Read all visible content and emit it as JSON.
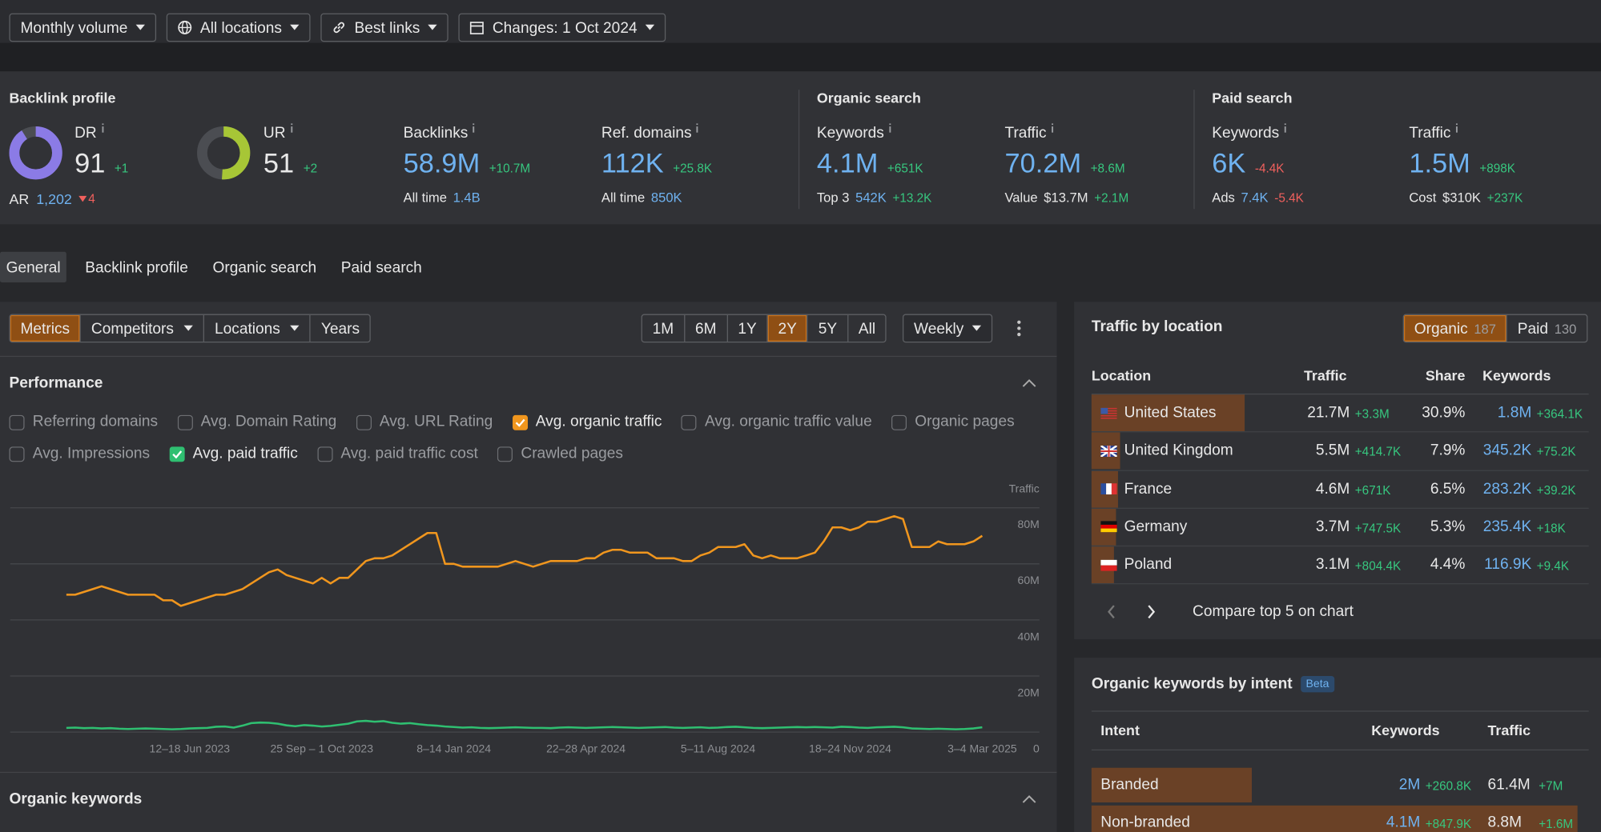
{
  "filters": [
    "Monthly volume",
    "All locations",
    "Best links",
    "Changes: 1 Oct 2024"
  ],
  "backlink_profile": {
    "title": "Backlink profile",
    "dr": {
      "label": "DR",
      "value": 91,
      "change": "+1"
    },
    "ur": {
      "label": "UR",
      "value": 51,
      "change": "+2"
    },
    "ar": {
      "label": "AR",
      "value": "1,202",
      "change": "4"
    },
    "backlinks": {
      "label": "Backlinks",
      "value": "58.9M",
      "change": "+10.7M",
      "sub_label": "All time",
      "sub_value": "1.4B"
    },
    "ref_domains": {
      "label": "Ref. domains",
      "value": "112K",
      "change": "+25.8K",
      "sub_label": "All time",
      "sub_value": "850K"
    }
  },
  "organic_search": {
    "title": "Organic search",
    "keywords": {
      "label": "Keywords",
      "value": "4.1M",
      "change": "+651K",
      "sub_label": "Top 3",
      "sub_value": "542K",
      "sub_change": "+13.2K"
    },
    "traffic": {
      "label": "Traffic",
      "value": "70.2M",
      "change": "+8.6M",
      "sub_label": "Value",
      "sub_value": "$13.7M",
      "sub_change": "+2.1M"
    }
  },
  "paid_search": {
    "title": "Paid search",
    "keywords": {
      "label": "Keywords",
      "value": "6K",
      "change": "-4.4K",
      "sub_label": "Ads",
      "sub_value": "7.4K",
      "sub_change": "-5.4K"
    },
    "traffic": {
      "label": "Traffic",
      "value": "1.5M",
      "change": "+898K",
      "sub_label": "Cost",
      "sub_value": "$310K",
      "sub_change": "+237K"
    }
  },
  "tabs": [
    "General",
    "Backlink profile",
    "Organic search",
    "Paid search"
  ],
  "active_tab": 0,
  "toolbar": {
    "views": [
      "Metrics",
      "Competitors",
      "Locations",
      "Years"
    ],
    "active_view": 0,
    "periods": [
      "1M",
      "6M",
      "1Y",
      "2Y",
      "5Y",
      "All"
    ],
    "active_period": 3,
    "interval": "Weekly"
  },
  "performance": {
    "title": "Performance",
    "metrics": [
      {
        "label": "Referring domains",
        "checked": false
      },
      {
        "label": "Avg. Domain Rating",
        "checked": false
      },
      {
        "label": "Avg. URL Rating",
        "checked": false
      },
      {
        "label": "Avg. organic traffic",
        "checked": true
      },
      {
        "label": "Avg. organic traffic value",
        "checked": false
      },
      {
        "label": "Organic pages",
        "checked": false
      },
      {
        "label": "Avg. Impressions",
        "checked": false
      },
      {
        "label": "Avg. paid traffic",
        "checked": true
      },
      {
        "label": "Avg. paid traffic cost",
        "checked": false
      },
      {
        "label": "Crawled pages",
        "checked": false
      }
    ]
  },
  "chart_data": {
    "type": "line",
    "y_label": "Traffic",
    "categories": [
      null,
      null,
      null,
      null,
      null,
      null,
      null,
      null,
      null,
      null,
      null,
      null,
      null,
      null,
      "12–18 Jun 2023",
      null,
      null,
      null,
      null,
      null,
      null,
      null,
      null,
      null,
      null,
      null,
      null,
      null,
      null,
      "25 Sep – 1 Oct 2023",
      null,
      null,
      null,
      null,
      null,
      null,
      null,
      null,
      null,
      null,
      null,
      null,
      null,
      null,
      "8–14 Jan 2024",
      null,
      null,
      null,
      null,
      null,
      null,
      null,
      null,
      null,
      null,
      null,
      null,
      null,
      null,
      "22–28 Apr 2024",
      null,
      null,
      null,
      null,
      null,
      null,
      null,
      null,
      null,
      null,
      null,
      null,
      null,
      null,
      "5–11 Aug 2024",
      null,
      null,
      null,
      null,
      null,
      null,
      null,
      null,
      null,
      null,
      null,
      null,
      null,
      null,
      "18–24 Nov 2024",
      null,
      null,
      null,
      null,
      null,
      null,
      null,
      null,
      null,
      null,
      null,
      null,
      null,
      null,
      "3–4 Mar 2025"
    ],
    "series": [
      {
        "color": "#f0961e",
        "values": [
          49,
          49,
          50,
          51,
          52,
          51,
          50,
          49,
          49,
          49,
          49,
          47,
          47,
          45,
          46,
          47,
          48,
          49,
          49,
          50,
          51,
          53,
          55,
          57,
          58,
          56,
          55,
          54,
          53,
          55,
          53,
          55,
          55,
          58,
          61,
          62,
          62,
          63,
          65,
          67,
          69,
          71,
          71,
          60,
          60,
          59,
          59,
          59,
          59,
          59,
          60,
          61,
          60,
          59,
          60,
          61,
          61,
          61,
          61,
          62,
          62,
          64,
          65,
          65,
          64,
          64,
          64,
          62,
          62,
          62,
          61,
          61,
          63,
          64,
          66,
          66,
          66,
          67,
          63,
          62,
          63,
          62,
          62,
          62,
          63,
          64,
          68,
          73,
          73,
          72,
          73,
          75,
          75,
          76,
          77,
          76,
          66,
          66,
          66,
          68,
          67,
          67,
          67,
          68,
          70
        ]
      },
      {
        "color": "#2fbf71",
        "values": [
          1.5,
          1.6,
          1.4,
          1.5,
          1.3,
          1.4,
          1.2,
          1.1,
          1.2,
          1.3,
          1.2,
          1.1,
          1.0,
          1.1,
          1.3,
          1.4,
          1.5,
          1.9,
          2.0,
          1.6,
          2.3,
          3.2,
          3.4,
          3.3,
          3.0,
          2.4,
          2.1,
          2.5,
          2.3,
          2.0,
          2.2,
          2.6,
          3.0,
          3.8,
          4.0,
          3.7,
          3.9,
          3.3,
          3.0,
          3.2,
          2.8,
          2.5,
          2.3,
          2.0,
          1.8,
          1.6,
          1.7,
          1.5,
          1.4,
          1.5,
          1.6,
          1.7,
          1.6,
          1.5,
          1.5,
          1.4,
          1.6,
          1.7,
          1.6,
          1.5,
          1.6,
          1.7,
          1.8,
          1.7,
          1.6,
          1.5,
          1.6,
          1.7,
          1.8,
          1.6,
          1.5,
          1.6,
          1.7,
          1.5,
          1.6,
          1.8,
          1.9,
          1.7,
          1.5,
          1.4,
          1.5,
          1.6,
          1.7,
          1.8,
          1.7,
          1.8,
          1.7,
          1.6,
          1.9,
          1.8,
          1.6,
          1.5,
          1.7,
          1.8,
          1.9,
          1.7,
          1.3,
          1.2,
          1.1,
          1.2,
          1.1,
          1.0,
          1.1,
          1.3,
          1.7
        ]
      }
    ],
    "ylim": [
      0,
      80
    ],
    "yticks": [
      0,
      {
        "value": 20,
        "label": "20M"
      },
      {
        "value": 40,
        "label": "40M"
      },
      {
        "value": 60,
        "label": "60M"
      },
      {
        "value": 80,
        "label": "80M"
      }
    ],
    "grid": true
  },
  "organic_keywords": {
    "title": "Organic keywords"
  },
  "traffic_by_location": {
    "title": "Traffic by location",
    "toggles": [
      {
        "label": "Organic",
        "count": 187
      },
      {
        "label": "Paid",
        "count": 130
      }
    ],
    "active_toggle": 0,
    "headers": [
      "Location",
      "Traffic",
      "Share",
      "Keywords"
    ],
    "rows": [
      {
        "country": "United States",
        "traffic": "21.7M",
        "traffic_change": "+3.3M",
        "share": "30.9%",
        "keywords": "1.8M",
        "keywords_change": "+364.1K"
      },
      {
        "country": "United Kingdom",
        "traffic": "5.5M",
        "traffic_change": "+414.7K",
        "share": "7.9%",
        "keywords": "345.2K",
        "keywords_change": "+75.2K"
      },
      {
        "country": "France",
        "traffic": "4.6M",
        "traffic_change": "+671K",
        "share": "6.5%",
        "keywords": "283.2K",
        "keywords_change": "+39.2K"
      },
      {
        "country": "Germany",
        "traffic": "3.7M",
        "traffic_change": "+747.5K",
        "share": "5.3%",
        "keywords": "235.4K",
        "keywords_change": "+18K"
      },
      {
        "country": "Poland",
        "traffic": "3.1M",
        "traffic_change": "+804.4K",
        "share": "4.4%",
        "keywords": "116.9K",
        "keywords_change": "+9.4K"
      }
    ],
    "compare": "Compare top 5 on chart"
  },
  "intent": {
    "title": "Organic keywords by intent",
    "badge": "Beta",
    "headers": [
      "Intent",
      "Keywords",
      "Traffic"
    ],
    "rows": [
      {
        "intent": "Branded",
        "keywords": "2M",
        "keywords_change": "+260.8K",
        "traffic": "61.4M",
        "traffic_change": "+7M"
      },
      {
        "intent": "Non-branded",
        "keywords": "4.1M",
        "keywords_change": "+847.9K",
        "traffic": "8.8M",
        "traffic_change": "+1.6M"
      }
    ]
  }
}
